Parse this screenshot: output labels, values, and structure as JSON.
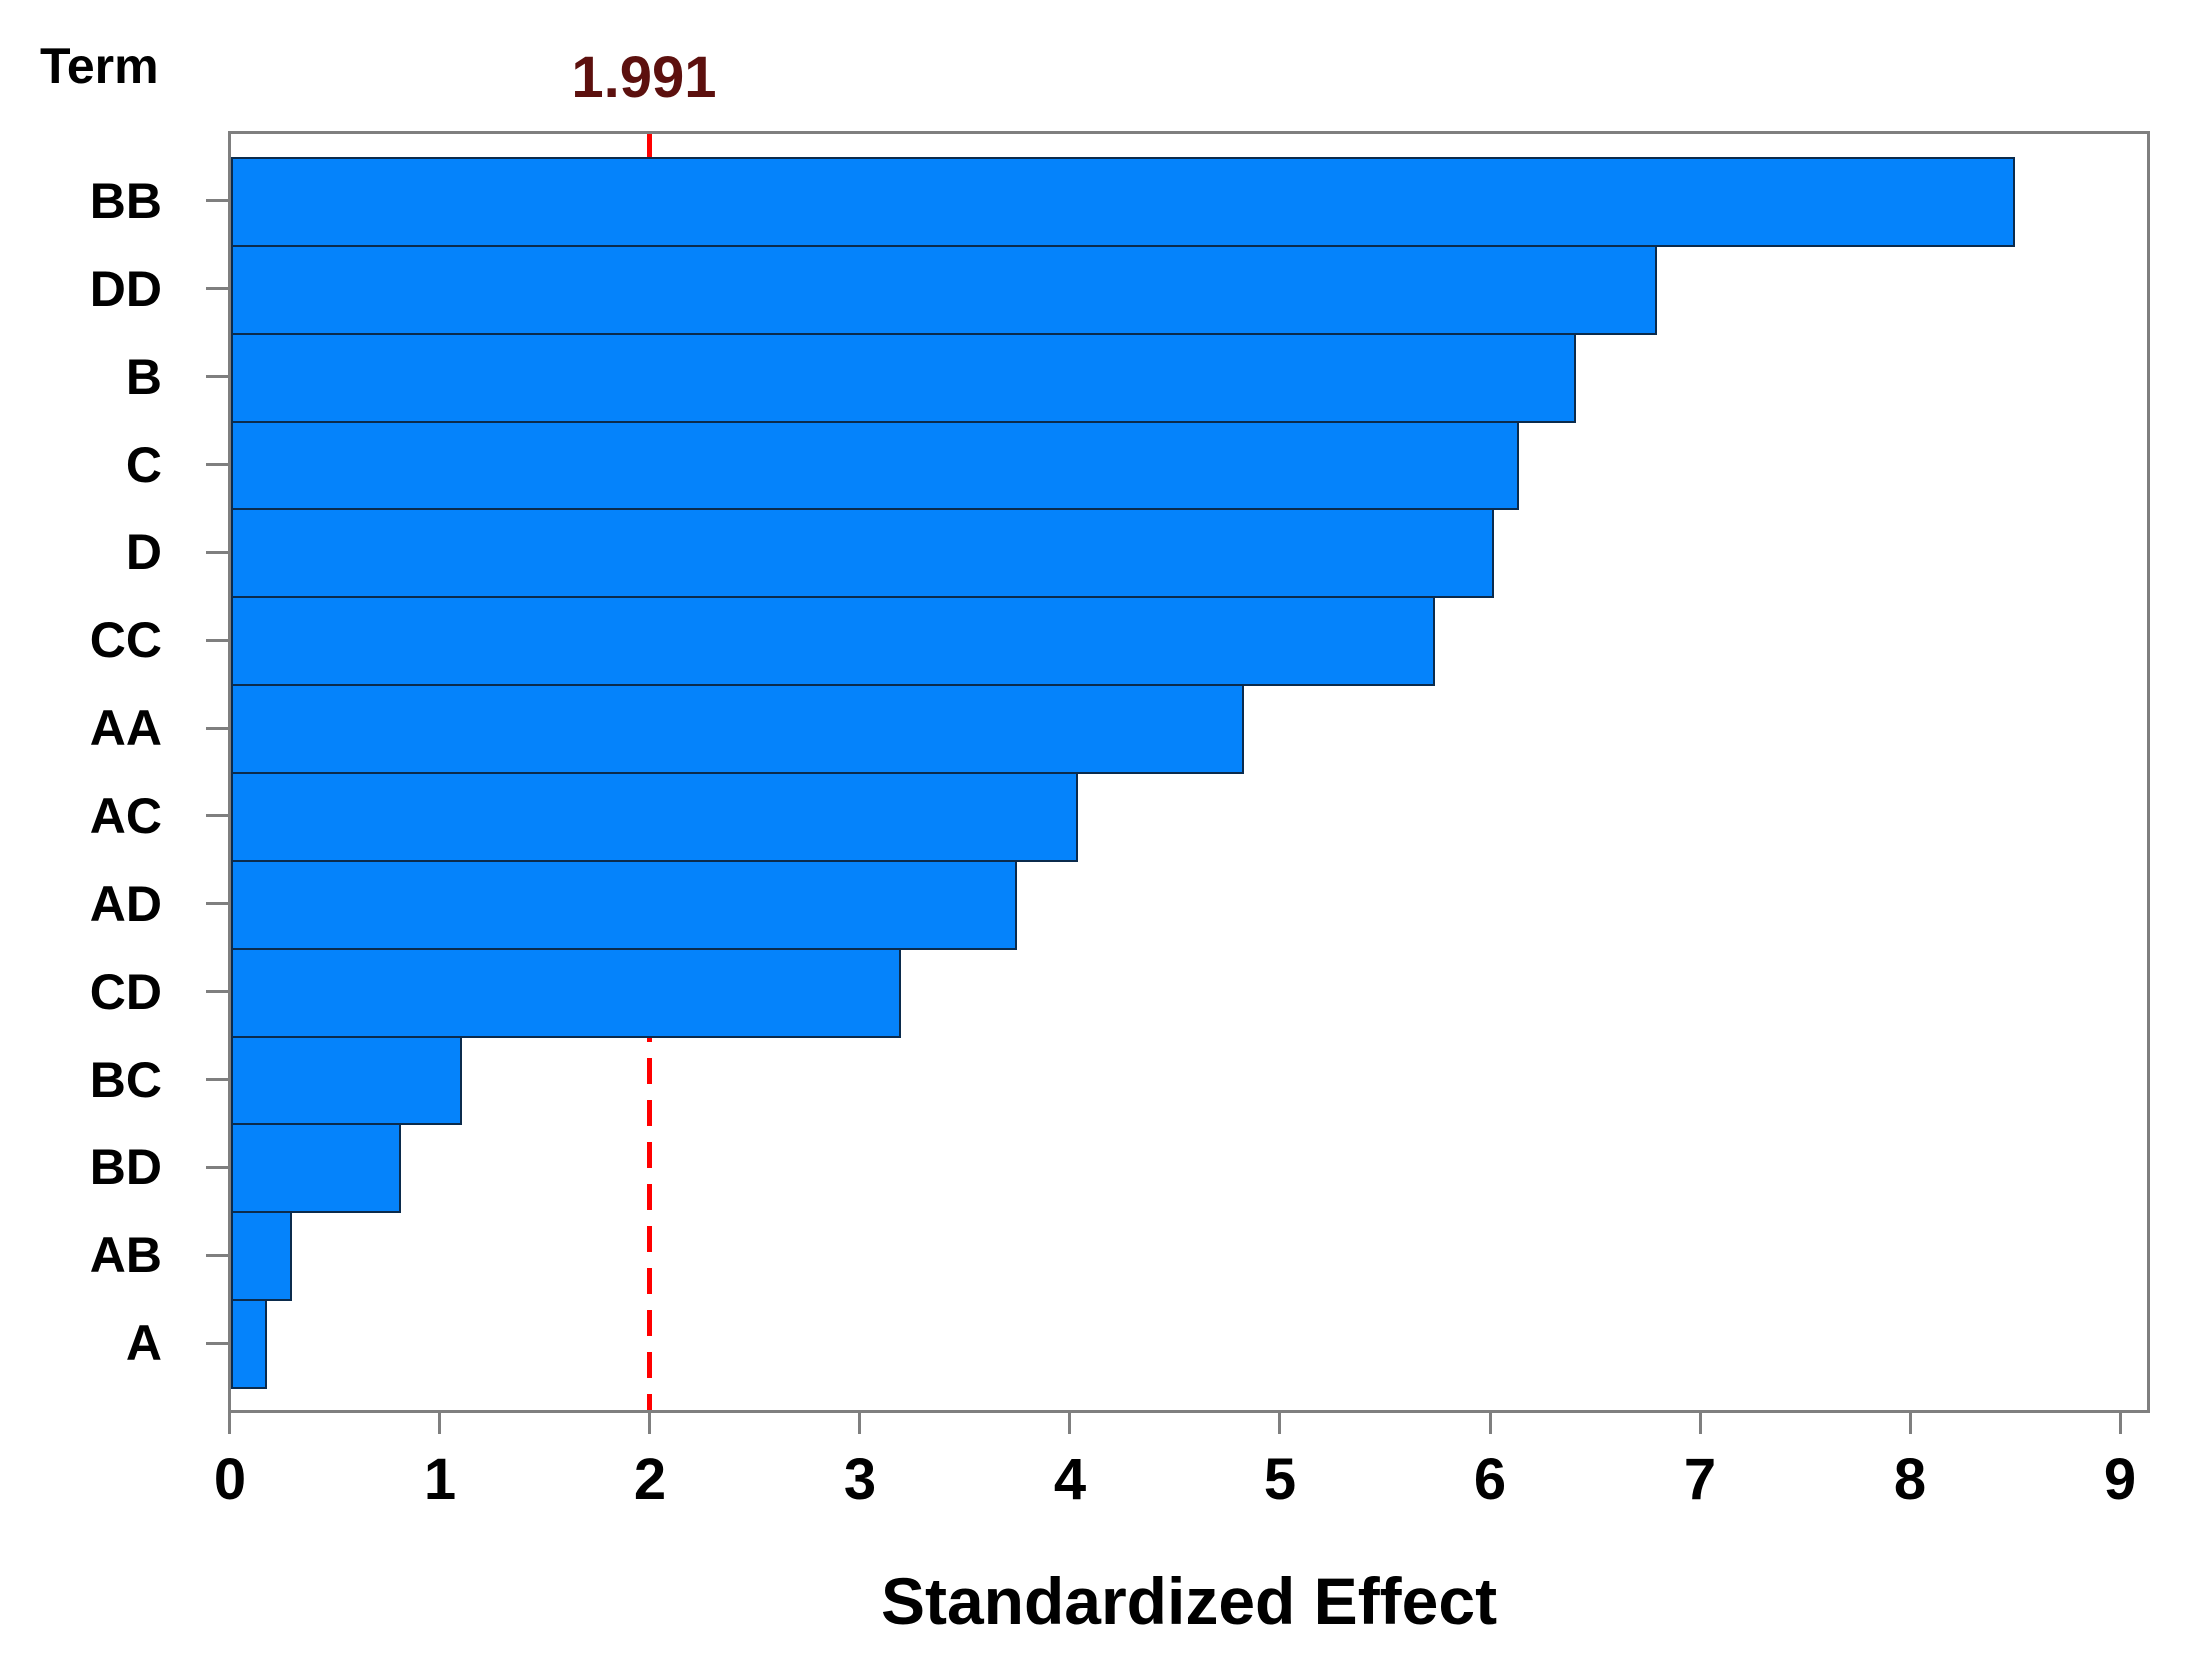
{
  "chart_data": {
    "type": "bar",
    "orientation": "horizontal",
    "title": "",
    "xlabel": "Standardized Effect",
    "ylabel": "Term",
    "categories": [
      "BB",
      "DD",
      "B",
      "C",
      "D",
      "CC",
      "AA",
      "AC",
      "AD",
      "CD",
      "BC",
      "BD",
      "AB",
      "A"
    ],
    "values": [
      8.49,
      6.79,
      6.4,
      6.13,
      6.01,
      5.73,
      4.82,
      4.03,
      3.74,
      3.19,
      1.1,
      0.81,
      0.29,
      0.17
    ],
    "x_ticks": [
      "0",
      "1",
      "2",
      "3",
      "4",
      "5",
      "6",
      "7",
      "8",
      "9"
    ],
    "xlim": [
      0,
      9.12
    ],
    "grid": false,
    "legend": null,
    "bar_color": "#0583FB",
    "bar_border_color": "#0B2B4C",
    "axis_color": "#7F7F7F",
    "text_color": "#000000",
    "reference_line": {
      "value": 1.991,
      "label": "1.991",
      "color": "#FF0000",
      "label_color": "#5C100E",
      "style": "dashed"
    }
  }
}
